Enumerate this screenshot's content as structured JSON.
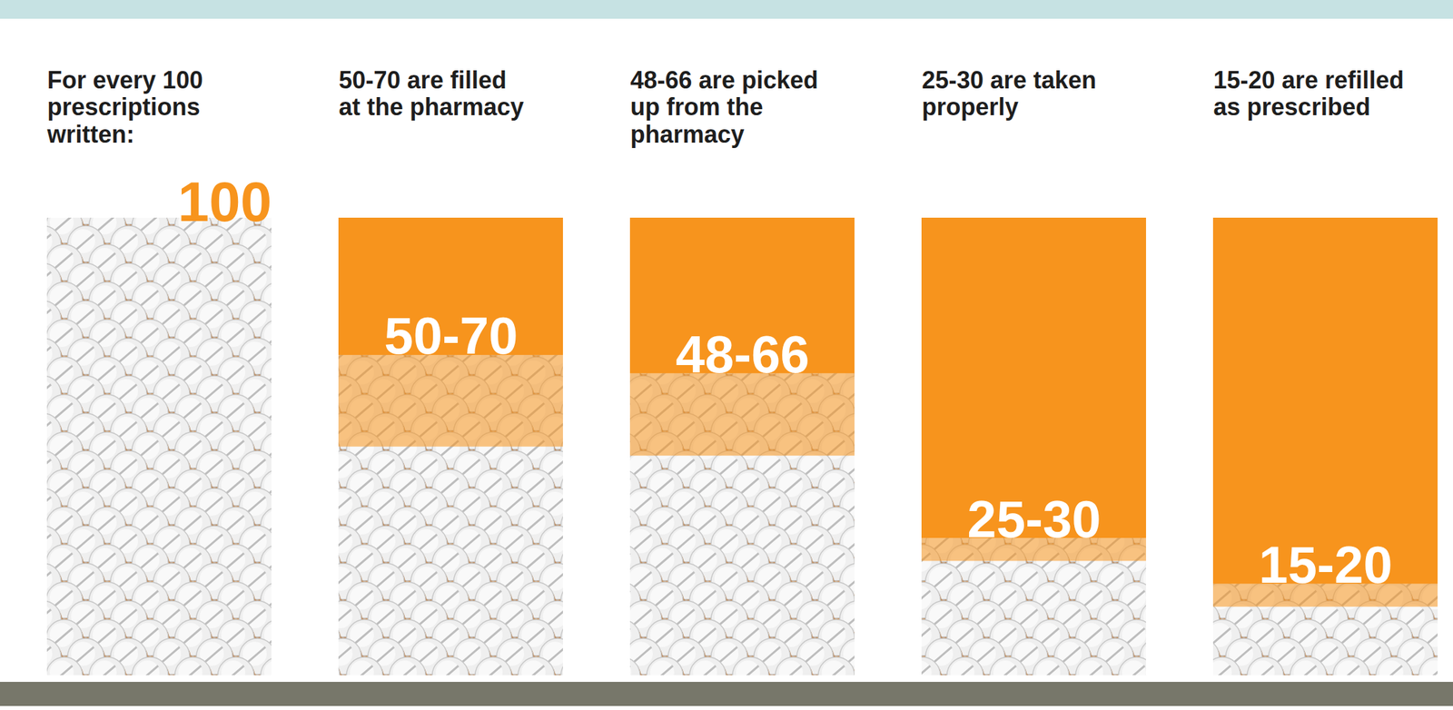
{
  "chart_data": {
    "type": "bar",
    "categories": [
      "For every 100 prescriptions written:",
      "50-70 are filled at the pharmacy",
      "48-66 are picked up from the pharmacy",
      "25-30 are taken properly",
      "15-20 are refilled as prescribed"
    ],
    "values": [
      [
        100,
        100
      ],
      [
        50,
        70
      ],
      [
        48,
        66
      ],
      [
        25,
        30
      ],
      [
        15,
        20
      ]
    ],
    "value_labels": [
      "100",
      "50-70",
      "48-66",
      "25-30",
      "15-20"
    ],
    "ylim": [
      0,
      100
    ],
    "color": "#f7941d",
    "data_labels": true,
    "tick_labels": false
  }
}
